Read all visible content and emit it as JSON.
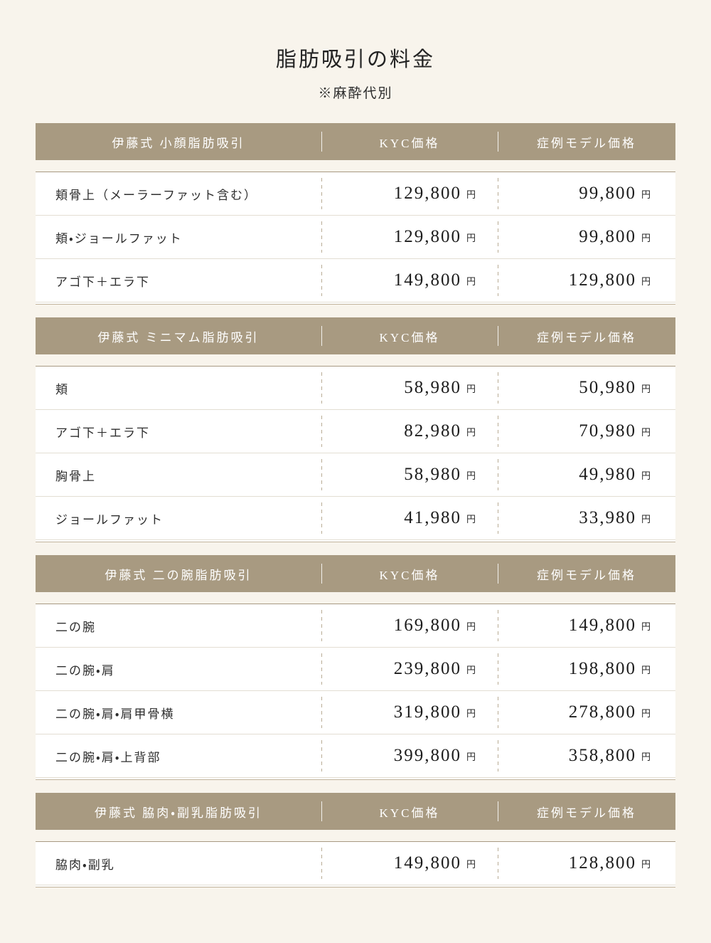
{
  "page": {
    "title": "脂肪吸引の料金",
    "note": "※麻酔代別"
  },
  "columns": {
    "kyc": "KYC価格",
    "model": "症例モデル価格"
  },
  "unit": "円",
  "colors": {
    "page_bg": "#f8f4ec",
    "header_bg": "#a89a81",
    "header_text": "#ffffff",
    "table_border": "#c0b29b",
    "row_divider": "#e3ded3",
    "dashed_divider": "#b9ac95",
    "text": "#1f1f1f"
  },
  "tables": [
    {
      "title": "伊藤式 小顔脂肪吸引",
      "rows": [
        {
          "label": "頬骨上（メーラーファット含む）",
          "kyc": "129,800",
          "model": "99,800"
        },
        {
          "label": "頬・ジョールファット",
          "kyc": "129,800",
          "model": "99,800"
        },
        {
          "label": "アゴ下＋エラ下",
          "kyc": "149,800",
          "model": "129,800"
        }
      ]
    },
    {
      "title": "伊藤式 ミニマム脂肪吸引",
      "rows": [
        {
          "label": "頬",
          "kyc": "58,980",
          "model": "50,980"
        },
        {
          "label": "アゴ下＋エラ下",
          "kyc": "82,980",
          "model": "70,980"
        },
        {
          "label": "胸骨上",
          "kyc": "58,980",
          "model": "49,980"
        },
        {
          "label": "ジョールファット",
          "kyc": "41,980",
          "model": "33,980"
        }
      ]
    },
    {
      "title": "伊藤式 二の腕脂肪吸引",
      "rows": [
        {
          "label": "二の腕",
          "kyc": "169,800",
          "model": "149,800"
        },
        {
          "label": "二の腕・肩",
          "kyc": "239,800",
          "model": "198,800"
        },
        {
          "label": "二の腕・肩・肩甲骨横",
          "kyc": "319,800",
          "model": "278,800"
        },
        {
          "label": "二の腕・肩・上背部",
          "kyc": "399,800",
          "model": "358,800"
        }
      ]
    },
    {
      "title": "伊藤式 脇肉・副乳脂肪吸引",
      "rows": [
        {
          "label": "脇肉・副乳",
          "kyc": "149,800",
          "model": "128,800"
        }
      ]
    }
  ]
}
